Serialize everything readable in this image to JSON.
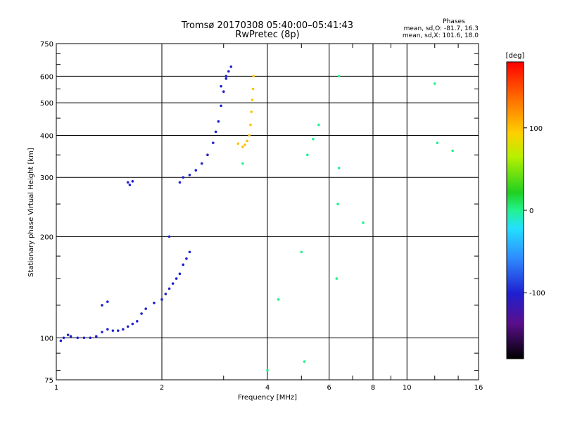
{
  "chart_data": {
    "type": "scatter",
    "title": "Tromsø 20170308 05:40:00–05:41:43",
    "subtitle": "RwPretec (8p)",
    "xlabel": "Frequency [MHz]",
    "ylabel": "Stationary phase Virtual Height [km]",
    "xscale": "log",
    "yscale": "log",
    "xlim": [
      1,
      16
    ],
    "ylim": [
      75,
      750
    ],
    "xticks": [
      1,
      2,
      4,
      6,
      8,
      10,
      16
    ],
    "xtick_labels": [
      "1",
      "2",
      "4",
      "6",
      "8",
      "10",
      "16"
    ],
    "yticks": [
      75,
      100,
      200,
      300,
      400,
      500,
      600,
      750
    ],
    "ytick_labels": [
      "75",
      "100",
      "200",
      "300",
      "400",
      "500",
      "600",
      "750"
    ],
    "grid": true,
    "legend": {
      "heading": "Phases",
      "line1": "mean, sd,O: -81.7, 16.3",
      "line2": "mean, sd,X: 101.6, 18.0"
    },
    "colorbar": {
      "label": "[deg]",
      "ticks": [
        100,
        0,
        -100
      ],
      "tick_labels": [
        "100",
        "0",
        "-100"
      ],
      "range": [
        -180,
        180
      ]
    },
    "series": [
      {
        "description": "O-mode trace (blue)",
        "phase_deg": -100,
        "points": [
          [
            1.03,
            98
          ],
          [
            1.05,
            100
          ],
          [
            1.08,
            102
          ],
          [
            1.1,
            101
          ],
          [
            1.15,
            100
          ],
          [
            1.2,
            100
          ],
          [
            1.25,
            100
          ],
          [
            1.3,
            101
          ],
          [
            1.35,
            104
          ],
          [
            1.4,
            106
          ],
          [
            1.45,
            105
          ],
          [
            1.5,
            105
          ],
          [
            1.55,
            106
          ],
          [
            1.6,
            108
          ],
          [
            1.65,
            110
          ],
          [
            1.7,
            112
          ],
          [
            1.75,
            118
          ],
          [
            1.8,
            122
          ],
          [
            1.9,
            127
          ],
          [
            2.0,
            130
          ],
          [
            2.05,
            135
          ],
          [
            2.1,
            140
          ],
          [
            2.15,
            145
          ],
          [
            2.2,
            150
          ],
          [
            2.25,
            155
          ],
          [
            2.3,
            165
          ],
          [
            2.35,
            172
          ],
          [
            2.4,
            180
          ],
          [
            1.35,
            125
          ],
          [
            1.4,
            128
          ],
          [
            1.6,
            290
          ],
          [
            1.62,
            285
          ],
          [
            1.65,
            292
          ],
          [
            2.1,
            200
          ],
          [
            2.25,
            290
          ],
          [
            2.3,
            300
          ],
          [
            2.4,
            305
          ],
          [
            2.5,
            315
          ],
          [
            2.6,
            330
          ],
          [
            2.7,
            350
          ],
          [
            2.8,
            380
          ],
          [
            2.85,
            410
          ],
          [
            2.9,
            440
          ],
          [
            2.95,
            490
          ],
          [
            3.0,
            540
          ],
          [
            3.05,
            590
          ],
          [
            3.1,
            620
          ],
          [
            3.15,
            640
          ],
          [
            2.95,
            560
          ],
          [
            3.05,
            600
          ]
        ]
      },
      {
        "description": "X-mode trace (orange/yellow)",
        "phase_deg": 100,
        "points": [
          [
            3.3,
            378
          ],
          [
            3.4,
            370
          ],
          [
            3.45,
            375
          ],
          [
            3.5,
            385
          ],
          [
            3.55,
            400
          ],
          [
            3.58,
            430
          ],
          [
            3.6,
            470
          ],
          [
            3.62,
            510
          ],
          [
            3.64,
            550
          ],
          [
            3.65,
            600
          ]
        ]
      },
      {
        "description": "scattered echoes",
        "phase_deg": 0,
        "points": [
          [
            4.3,
            130
          ],
          [
            5.0,
            180
          ],
          [
            5.2,
            350
          ],
          [
            5.4,
            390
          ],
          [
            5.6,
            430
          ],
          [
            6.3,
            150
          ],
          [
            6.35,
            250
          ],
          [
            6.4,
            320
          ],
          [
            6.4,
            600
          ],
          [
            7.5,
            220
          ],
          [
            12.0,
            570
          ],
          [
            12.2,
            380
          ],
          [
            13.5,
            360
          ],
          [
            3.4,
            330
          ],
          [
            4.0,
            80
          ],
          [
            5.1,
            85
          ]
        ]
      }
    ]
  }
}
